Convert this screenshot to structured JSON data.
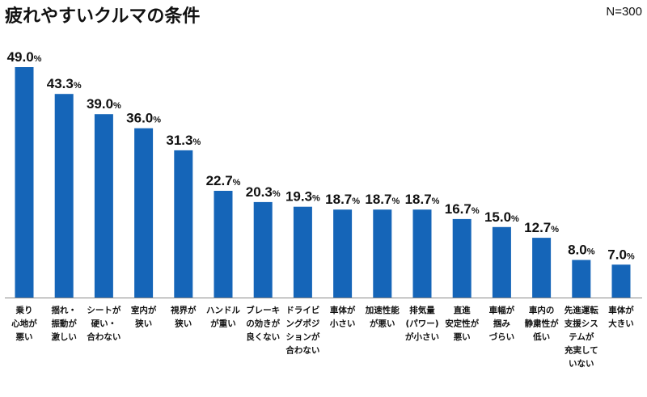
{
  "header": {
    "title": "疲れやすいクルマの条件",
    "sample": "N=300"
  },
  "chart_data": {
    "type": "bar",
    "title": "疲れやすいクルマの条件",
    "unit": "%",
    "categories": [
      [
        "乗り",
        "心地が",
        "悪い"
      ],
      [
        "揺れ・",
        "振動が",
        "激しい"
      ],
      [
        "シートが",
        "硬い・",
        "合わない"
      ],
      [
        "室内が",
        "狭い"
      ],
      [
        "視界が",
        "狭い"
      ],
      [
        "ハンドル",
        "が重い"
      ],
      [
        "ブレーキ",
        "の効きが",
        "良くない"
      ],
      [
        "ドライビ",
        "ングポジ",
        "ションが",
        "合わない"
      ],
      [
        "車体が",
        "小さい"
      ],
      [
        "加速性能",
        "が悪い"
      ],
      [
        "排気量",
        "(パワー)",
        "が小さい"
      ],
      [
        "直進",
        "安定性が",
        "悪い"
      ],
      [
        "車幅が",
        "掴み",
        "づらい"
      ],
      [
        "車内の",
        "静粛性が",
        "低い"
      ],
      [
        "先進運転",
        "支援シス",
        "テムが",
        "充実して",
        "いない"
      ],
      [
        "車体が",
        "大きい"
      ]
    ],
    "values": [
      49.0,
      43.3,
      39.0,
      36.0,
      31.3,
      22.7,
      20.3,
      19.3,
      18.7,
      18.7,
      18.7,
      16.7,
      15.0,
      12.7,
      8.0,
      7.0
    ],
    "value_labels": [
      "49.0",
      "43.3",
      "39.0",
      "36.0",
      "31.3",
      "22.7",
      "20.3",
      "19.3",
      "18.7",
      "18.7",
      "18.7",
      "16.7",
      "15.0",
      "12.7",
      "8.0",
      "7.0"
    ],
    "ylim": [
      0,
      49
    ],
    "bar_color": "#1565b8",
    "baseline_color": "#888888",
    "grid": false,
    "legend": "none"
  }
}
